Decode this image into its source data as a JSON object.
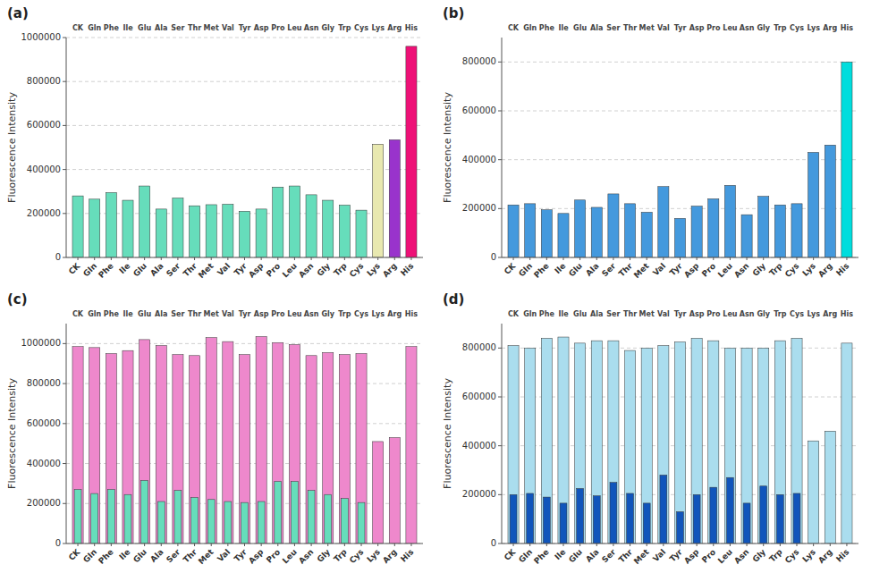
{
  "chart_data": [
    {
      "type": "bar",
      "title": "(a)",
      "ylabel": "Fluorescence Intensity",
      "categories": [
        "CK",
        "Gln",
        "Phe",
        "Ile",
        "Glu",
        "Ala",
        "Ser",
        "Thr",
        "Met",
        "Val",
        "Tyr",
        "Asp",
        "Pro",
        "Leu",
        "Asn",
        "Gly",
        "Trp",
        "Cys",
        "Lys",
        "Arg",
        "His"
      ],
      "values": [
        280000,
        265000,
        295000,
        260000,
        325000,
        220000,
        270000,
        235000,
        240000,
        242000,
        210000,
        220000,
        320000,
        325000,
        285000,
        260000,
        238000,
        215000,
        515000,
        535000,
        960000
      ],
      "colors": [
        "#66ddbb",
        "#66ddbb",
        "#66ddbb",
        "#66ddbb",
        "#66ddbb",
        "#66ddbb",
        "#66ddbb",
        "#66ddbb",
        "#66ddbb",
        "#66ddbb",
        "#66ddbb",
        "#66ddbb",
        "#66ddbb",
        "#66ddbb",
        "#66ddbb",
        "#66ddbb",
        "#66ddbb",
        "#66ddbb",
        "#e8e8b0",
        "#9933cc",
        "#ee1177"
      ],
      "ylim": [
        0,
        1000000
      ],
      "yticks": [
        0,
        200000,
        400000,
        600000,
        800000,
        1000000
      ],
      "grid": true
    },
    {
      "type": "bar",
      "title": "(b)",
      "ylabel": "Fluorescence Intensity",
      "categories": [
        "CK",
        "Gln",
        "Phe",
        "Ile",
        "Glu",
        "Ala",
        "Ser",
        "Thr",
        "Met",
        "Val",
        "Tyr",
        "Asp",
        "Pro",
        "Leu",
        "Asn",
        "Gly",
        "Trp",
        "Cys",
        "Lys",
        "Arg",
        "His"
      ],
      "values": [
        215000,
        220000,
        195000,
        180000,
        235000,
        205000,
        260000,
        220000,
        185000,
        290000,
        160000,
        210000,
        240000,
        295000,
        175000,
        250000,
        215000,
        220000,
        430000,
        460000,
        800000
      ],
      "colors": [
        "#4499dd",
        "#4499dd",
        "#4499dd",
        "#4499dd",
        "#4499dd",
        "#4499dd",
        "#4499dd",
        "#4499dd",
        "#4499dd",
        "#4499dd",
        "#4499dd",
        "#4499dd",
        "#4499dd",
        "#4499dd",
        "#4499dd",
        "#4499dd",
        "#4499dd",
        "#4499dd",
        "#4499dd",
        "#4499dd",
        "#00dddd"
      ],
      "ylim": [
        0,
        900000
      ],
      "yticks": [
        0,
        200000,
        400000,
        600000,
        800000
      ],
      "grid": true
    },
    {
      "type": "bar",
      "title": "(c)",
      "ylabel": "Fluorescence Intensity",
      "categories": [
        "CK",
        "Gln",
        "Phe",
        "Ile",
        "Glu",
        "Ala",
        "Ser",
        "Thr",
        "Met",
        "Val",
        "Tyr",
        "Asp",
        "Pro",
        "Leu",
        "Asn",
        "Gly",
        "Trp",
        "Cys",
        "Lys",
        "Arg",
        "His"
      ],
      "series": [
        {
          "values": [
            985000,
            980000,
            950000,
            965000,
            1020000,
            990000,
            945000,
            940000,
            1030000,
            1010000,
            945000,
            1035000,
            1005000,
            995000,
            940000,
            955000,
            945000,
            950000,
            510000,
            530000,
            985000
          ],
          "colors": [
            "#ee88cc",
            "#ee88cc",
            "#ee88cc",
            "#ee88cc",
            "#ee88cc",
            "#ee88cc",
            "#ee88cc",
            "#ee88cc",
            "#ee88cc",
            "#ee88cc",
            "#ee88cc",
            "#ee88cc",
            "#ee88cc",
            "#ee88cc",
            "#ee88cc",
            "#ee88cc",
            "#ee88cc",
            "#ee88cc",
            "#ee88cc",
            "#ee88cc",
            "#ee88cc"
          ]
        },
        {
          "values": [
            270000,
            250000,
            270000,
            245000,
            315000,
            210000,
            265000,
            230000,
            220000,
            210000,
            205000,
            210000,
            310000,
            310000,
            265000,
            245000,
            225000,
            205000,
            0,
            0,
            0
          ],
          "colors": [
            "#66ddbb",
            "#66ddbb",
            "#66ddbb",
            "#66ddbb",
            "#66ddbb",
            "#66ddbb",
            "#66ddbb",
            "#66ddbb",
            "#66ddbb",
            "#66ddbb",
            "#66ddbb",
            "#66ddbb",
            "#66ddbb",
            "#66ddbb",
            "#66ddbb",
            "#66ddbb",
            "#66ddbb",
            "#66ddbb",
            "#e8e8b0",
            "#9933cc",
            "#ee1177"
          ]
        }
      ],
      "ylim": [
        0,
        1100000
      ],
      "yticks": [
        0,
        200000,
        400000,
        600000,
        800000,
        1000000
      ],
      "grid": true
    },
    {
      "type": "bar",
      "title": "(d)",
      "ylabel": "Fluorescence Intensity",
      "categories": [
        "CK",
        "Gln",
        "Phe",
        "Ile",
        "Glu",
        "Ala",
        "Ser",
        "Thr",
        "Met",
        "Val",
        "Tyr",
        "Asp",
        "Pro",
        "Leu",
        "Asn",
        "Gly",
        "Trp",
        "Cys",
        "Lys",
        "Arg",
        "His"
      ],
      "series": [
        {
          "values": [
            810000,
            800000,
            840000,
            845000,
            820000,
            830000,
            830000,
            790000,
            800000,
            810000,
            825000,
            840000,
            830000,
            800000,
            800000,
            800000,
            830000,
            840000,
            420000,
            460000,
            820000
          ],
          "colors": [
            "#aaddee",
            "#aaddee",
            "#aaddee",
            "#aaddee",
            "#aaddee",
            "#aaddee",
            "#aaddee",
            "#aaddee",
            "#aaddee",
            "#aaddee",
            "#aaddee",
            "#aaddee",
            "#aaddee",
            "#aaddee",
            "#aaddee",
            "#aaddee",
            "#aaddee",
            "#aaddee",
            "#aaddee",
            "#aaddee",
            "#aaddee"
          ]
        },
        {
          "values": [
            200000,
            205000,
            190000,
            165000,
            225000,
            195000,
            250000,
            205000,
            165000,
            280000,
            130000,
            200000,
            230000,
            270000,
            165000,
            235000,
            200000,
            205000,
            0,
            0,
            0
          ],
          "colors": [
            "#1155bb",
            "#1155bb",
            "#1155bb",
            "#1155bb",
            "#1155bb",
            "#1155bb",
            "#1155bb",
            "#1155bb",
            "#1155bb",
            "#1155bb",
            "#1155bb",
            "#1155bb",
            "#1155bb",
            "#1155bb",
            "#1155bb",
            "#1155bb",
            "#1155bb",
            "#1155bb",
            "#00cccc",
            "#1155bb",
            "#1155bb"
          ]
        }
      ],
      "ylim": [
        0,
        900000
      ],
      "yticks": [
        0,
        200000,
        400000,
        600000,
        800000
      ],
      "grid": true
    }
  ]
}
